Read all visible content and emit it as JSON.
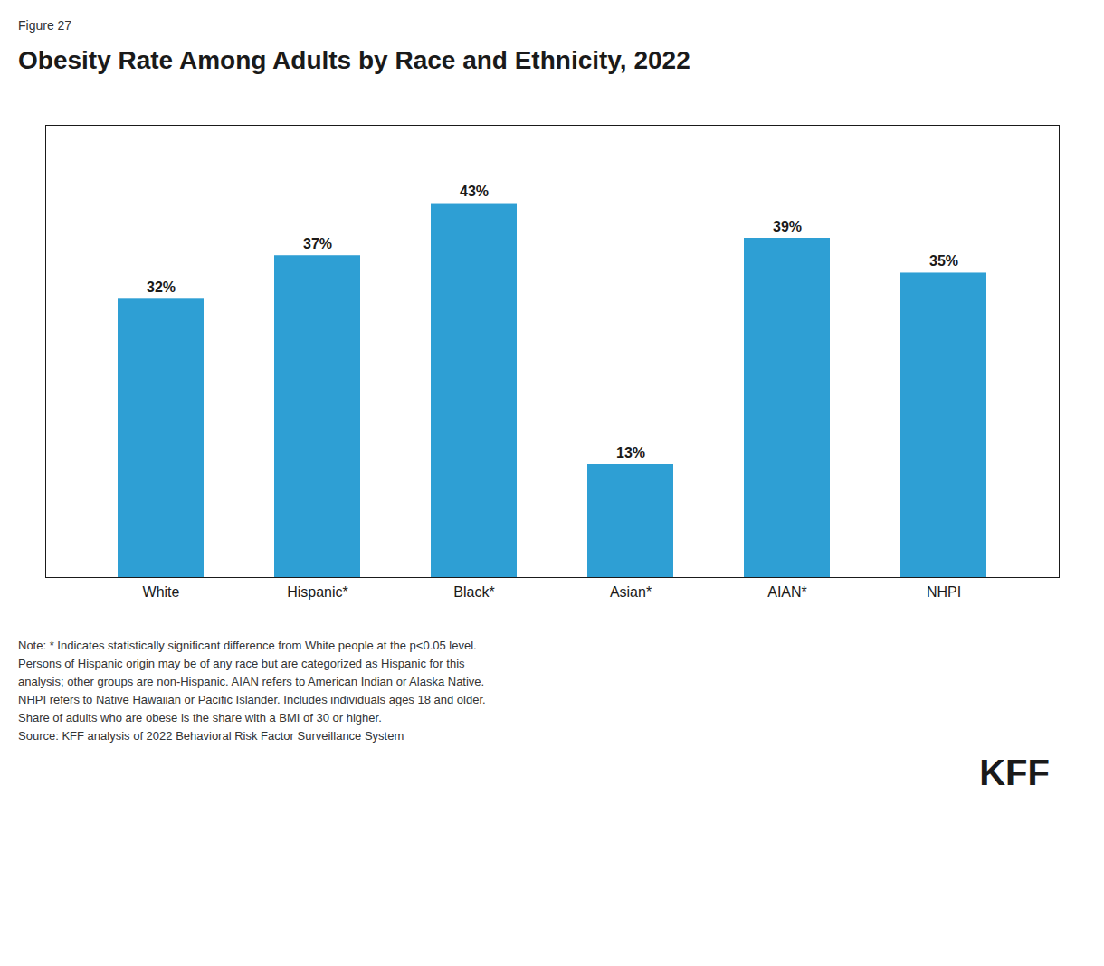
{
  "chart_data": {
    "type": "bar",
    "figure_label": "Figure 27",
    "title": "Obesity Rate Among Adults by Race and Ethnicity, 2022",
    "categories": [
      "White",
      "Hispanic*",
      "Black*",
      "Asian*",
      "AIAN*",
      "NHPI"
    ],
    "values": [
      32,
      37,
      43,
      13,
      39,
      35
    ],
    "value_labels": [
      "32%",
      "37%",
      "43%",
      "13%",
      "39%",
      "35%"
    ],
    "data_labels": true,
    "color": "#2e9fd4",
    "ylim": [
      0,
      52
    ],
    "tick_labels": "x",
    "grid": false,
    "notes": [
      "Note: * Indicates statistically significant difference from White people at the p<0.05 level.",
      "Persons of Hispanic origin may be of any race but are categorized as Hispanic for this",
      "analysis; other groups are non-Hispanic. AIAN refers to American Indian or Alaska Native.",
      "NHPI refers to Native Hawaiian or Pacific Islander. Includes individuals ages 18 and older.",
      "Share of adults who are obese is the share with a BMI of 30 or higher."
    ],
    "source": "Source: KFF analysis of 2022 Behavioral Risk Factor Surveillance System",
    "logo": "KFF"
  }
}
